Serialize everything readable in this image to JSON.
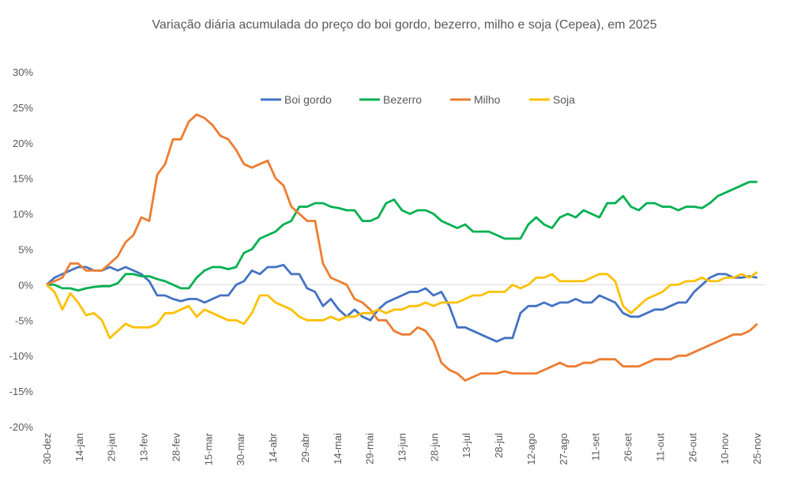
{
  "chart_data": {
    "type": "line",
    "title": "Variação diária acumulada do preço do boi gordo, bezerro, milho e soja (Cepea), em 2025",
    "xlabel": "",
    "ylabel": "",
    "ylim": [
      -20,
      30
    ],
    "y_ticks": [
      30,
      25,
      20,
      15,
      10,
      5,
      0,
      -5,
      -10,
      -15,
      -20
    ],
    "y_tick_labels": [
      "30%",
      "25%",
      "20%",
      "15%",
      "10%",
      "5%",
      "0%",
      "-5%",
      "-10%",
      "-15%",
      "-20%"
    ],
    "x_tick_labels": [
      "30-dez",
      "14-jan",
      "29-jan",
      "13-fev",
      "28-fev",
      "15-mar",
      "30-mar",
      "14-abr",
      "29-abr",
      "14-mai",
      "29-mai",
      "13-jun",
      "28-jun",
      "13-jul",
      "28-jul",
      "12-ago",
      "27-ago",
      "11-set",
      "26-set",
      "11-out",
      "26-out",
      "10-nov",
      "25-nov"
    ],
    "x_tick_step_days": 15,
    "x_sample_step_days": 3.67,
    "legend_position": "top-center",
    "grid": false,
    "series": [
      {
        "name": "Boi gordo",
        "color": "#4472C4",
        "values": [
          0,
          1,
          1.5,
          2,
          2.5,
          2.5,
          2,
          2,
          2.5,
          2,
          2.5,
          2,
          1.5,
          0.5,
          -1.5,
          -1.5,
          -2,
          -2.3,
          -2,
          -2,
          -2.5,
          -2,
          -1.5,
          -1.5,
          0,
          0.5,
          2,
          1.5,
          2.5,
          2.5,
          2.8,
          1.5,
          1.5,
          -0.5,
          -1,
          -3,
          -2,
          -3.5,
          -4.5,
          -3.5,
          -4.5,
          -5,
          -3.5,
          -2.5,
          -2,
          -1.5,
          -1,
          -1,
          -0.5,
          -1.5,
          -1,
          -3,
          -6,
          -6,
          -6.5,
          -7,
          -7.5,
          -8,
          -7.5,
          -7.5,
          -4,
          -3,
          -3,
          -2.5,
          -3,
          -2.5,
          -2.5,
          -2,
          -2.5,
          -2.5,
          -1.5,
          -2,
          -2.5,
          -4,
          -4.5,
          -4.5,
          -4,
          -3.5,
          -3.5,
          -3,
          -2.5,
          -2.5,
          -1,
          0,
          1,
          1.5,
          1.5,
          1,
          1,
          1.2,
          1
        ]
      },
      {
        "name": "Bezerro",
        "color": "#00B050",
        "values": [
          0,
          0,
          -0.5,
          -0.5,
          -0.8,
          -0.5,
          -0.3,
          -0.2,
          -0.2,
          0.2,
          1.5,
          1.5,
          1.2,
          1.2,
          0.8,
          0.5,
          0,
          -0.5,
          -0.5,
          1,
          2,
          2.5,
          2.5,
          2.2,
          2.5,
          4.5,
          5,
          6.5,
          7,
          7.5,
          8.5,
          9,
          11,
          11,
          11.5,
          11.5,
          11,
          10.8,
          10.5,
          10.5,
          9,
          9,
          9.5,
          11.5,
          12,
          10.5,
          10,
          10.5,
          10.5,
          10,
          9,
          8.5,
          8,
          8.5,
          7.5,
          7.5,
          7.5,
          7,
          6.5,
          6.5,
          6.5,
          8.5,
          9.5,
          8.5,
          8,
          9.5,
          10,
          9.5,
          10.5,
          10,
          9.5,
          11.5,
          11.5,
          12.5,
          11,
          10.5,
          11.5,
          11.5,
          11,
          11,
          10.5,
          11,
          11,
          10.8,
          11.5,
          12.5,
          13,
          13.5,
          14,
          14.5,
          14.5
        ]
      },
      {
        "name": "Milho",
        "color": "#ED7D31",
        "values": [
          0,
          0.5,
          1,
          3,
          3,
          2,
          2,
          2,
          3,
          4,
          6,
          7,
          9.5,
          9,
          15.5,
          17,
          20.5,
          20.5,
          23,
          24,
          23.5,
          22.5,
          21,
          20.5,
          19,
          17,
          16.5,
          17,
          17.5,
          15,
          14,
          11,
          10,
          9,
          9,
          3,
          1,
          0.5,
          0,
          -2,
          -2.5,
          -3.5,
          -5,
          -5,
          -6.5,
          -7,
          -7,
          -6,
          -6.5,
          -8,
          -11,
          -12,
          -12.5,
          -13.5,
          -13,
          -12.5,
          -12.5,
          -12.5,
          -12.2,
          -12.5,
          -12.5,
          -12.5,
          -12.5,
          -12,
          -11.5,
          -11,
          -11.5,
          -11.5,
          -11,
          -11,
          -10.5,
          -10.5,
          -10.5,
          -11.5,
          -11.5,
          -11.5,
          -11,
          -10.5,
          -10.5,
          -10.5,
          -10,
          -10,
          -9.5,
          -9,
          -8.5,
          -8,
          -7.5,
          -7,
          -7,
          -6.5,
          -5.5
        ]
      },
      {
        "name": "Soja",
        "color": "#FFC000",
        "values": [
          0,
          -1,
          -3.5,
          -1.2,
          -2.5,
          -4.3,
          -4,
          -5,
          -7.5,
          -6.5,
          -5.5,
          -6,
          -6,
          -6,
          -5.5,
          -4,
          -4,
          -3.5,
          -3,
          -4.5,
          -3.5,
          -4,
          -4.5,
          -5,
          -5,
          -5.5,
          -4,
          -1.5,
          -1.5,
          -2.5,
          -3,
          -3.5,
          -4.5,
          -5,
          -5,
          -5,
          -4.5,
          -5,
          -4.5,
          -4.5,
          -4,
          -4,
          -3.5,
          -4,
          -3.5,
          -3.5,
          -3,
          -3,
          -2.5,
          -3,
          -2.5,
          -2.5,
          -2.5,
          -2,
          -1.5,
          -1.5,
          -1,
          -1,
          -1,
          0,
          -0.5,
          0,
          1,
          1,
          1.5,
          0.5,
          0.5,
          0.5,
          0.5,
          1,
          1.5,
          1.5,
          0.5,
          -3,
          -4,
          -3,
          -2,
          -1.5,
          -1,
          0,
          0,
          0.5,
          0.5,
          1,
          0.5,
          0.5,
          1,
          1,
          1.5,
          1,
          1.8
        ]
      }
    ]
  }
}
